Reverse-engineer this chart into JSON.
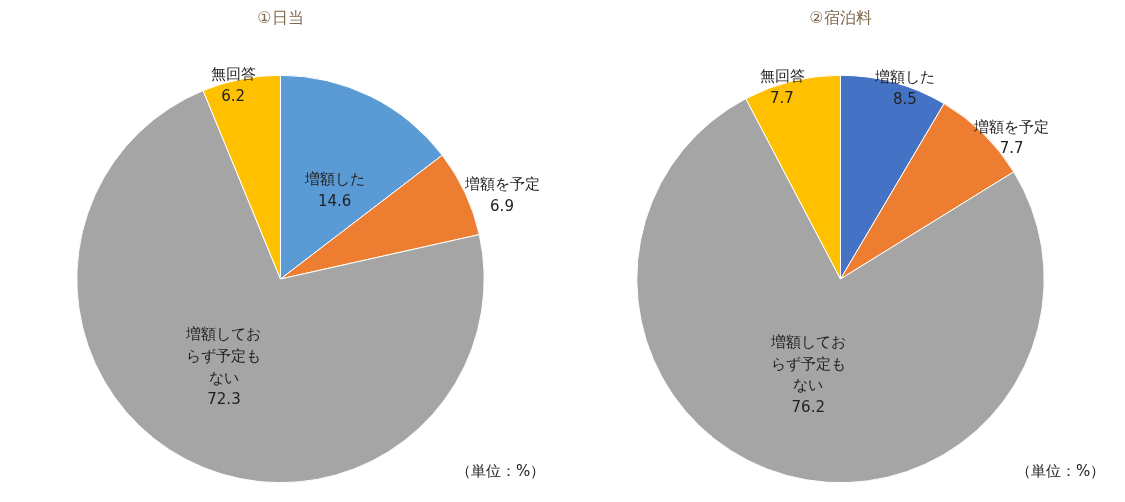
{
  "chart_data": [
    {
      "type": "pie",
      "title": "①日当",
      "categories": [
        "増額した",
        "増額を予定",
        "増額しておらず予定もない",
        "無回答"
      ],
      "values": [
        14.6,
        6.9,
        72.3,
        6.2
      ],
      "colors": [
        "#5b9bd5",
        "#ed7d31",
        "#a5a5a5",
        "#ffc000"
      ],
      "data_labels": true,
      "annotations": [
        "（単位：%）"
      ]
    },
    {
      "type": "pie",
      "title": "②宿泊料",
      "categories": [
        "増額した",
        "増額を予定",
        "増額しておらず予定もない",
        "無回答"
      ],
      "values": [
        8.5,
        7.7,
        76.2,
        7.7
      ],
      "colors": [
        "#4472c4",
        "#ed7d31",
        "#a5a5a5",
        "#ffc000"
      ],
      "data_labels": true,
      "annotations": [
        "（単位：%）"
      ]
    }
  ]
}
